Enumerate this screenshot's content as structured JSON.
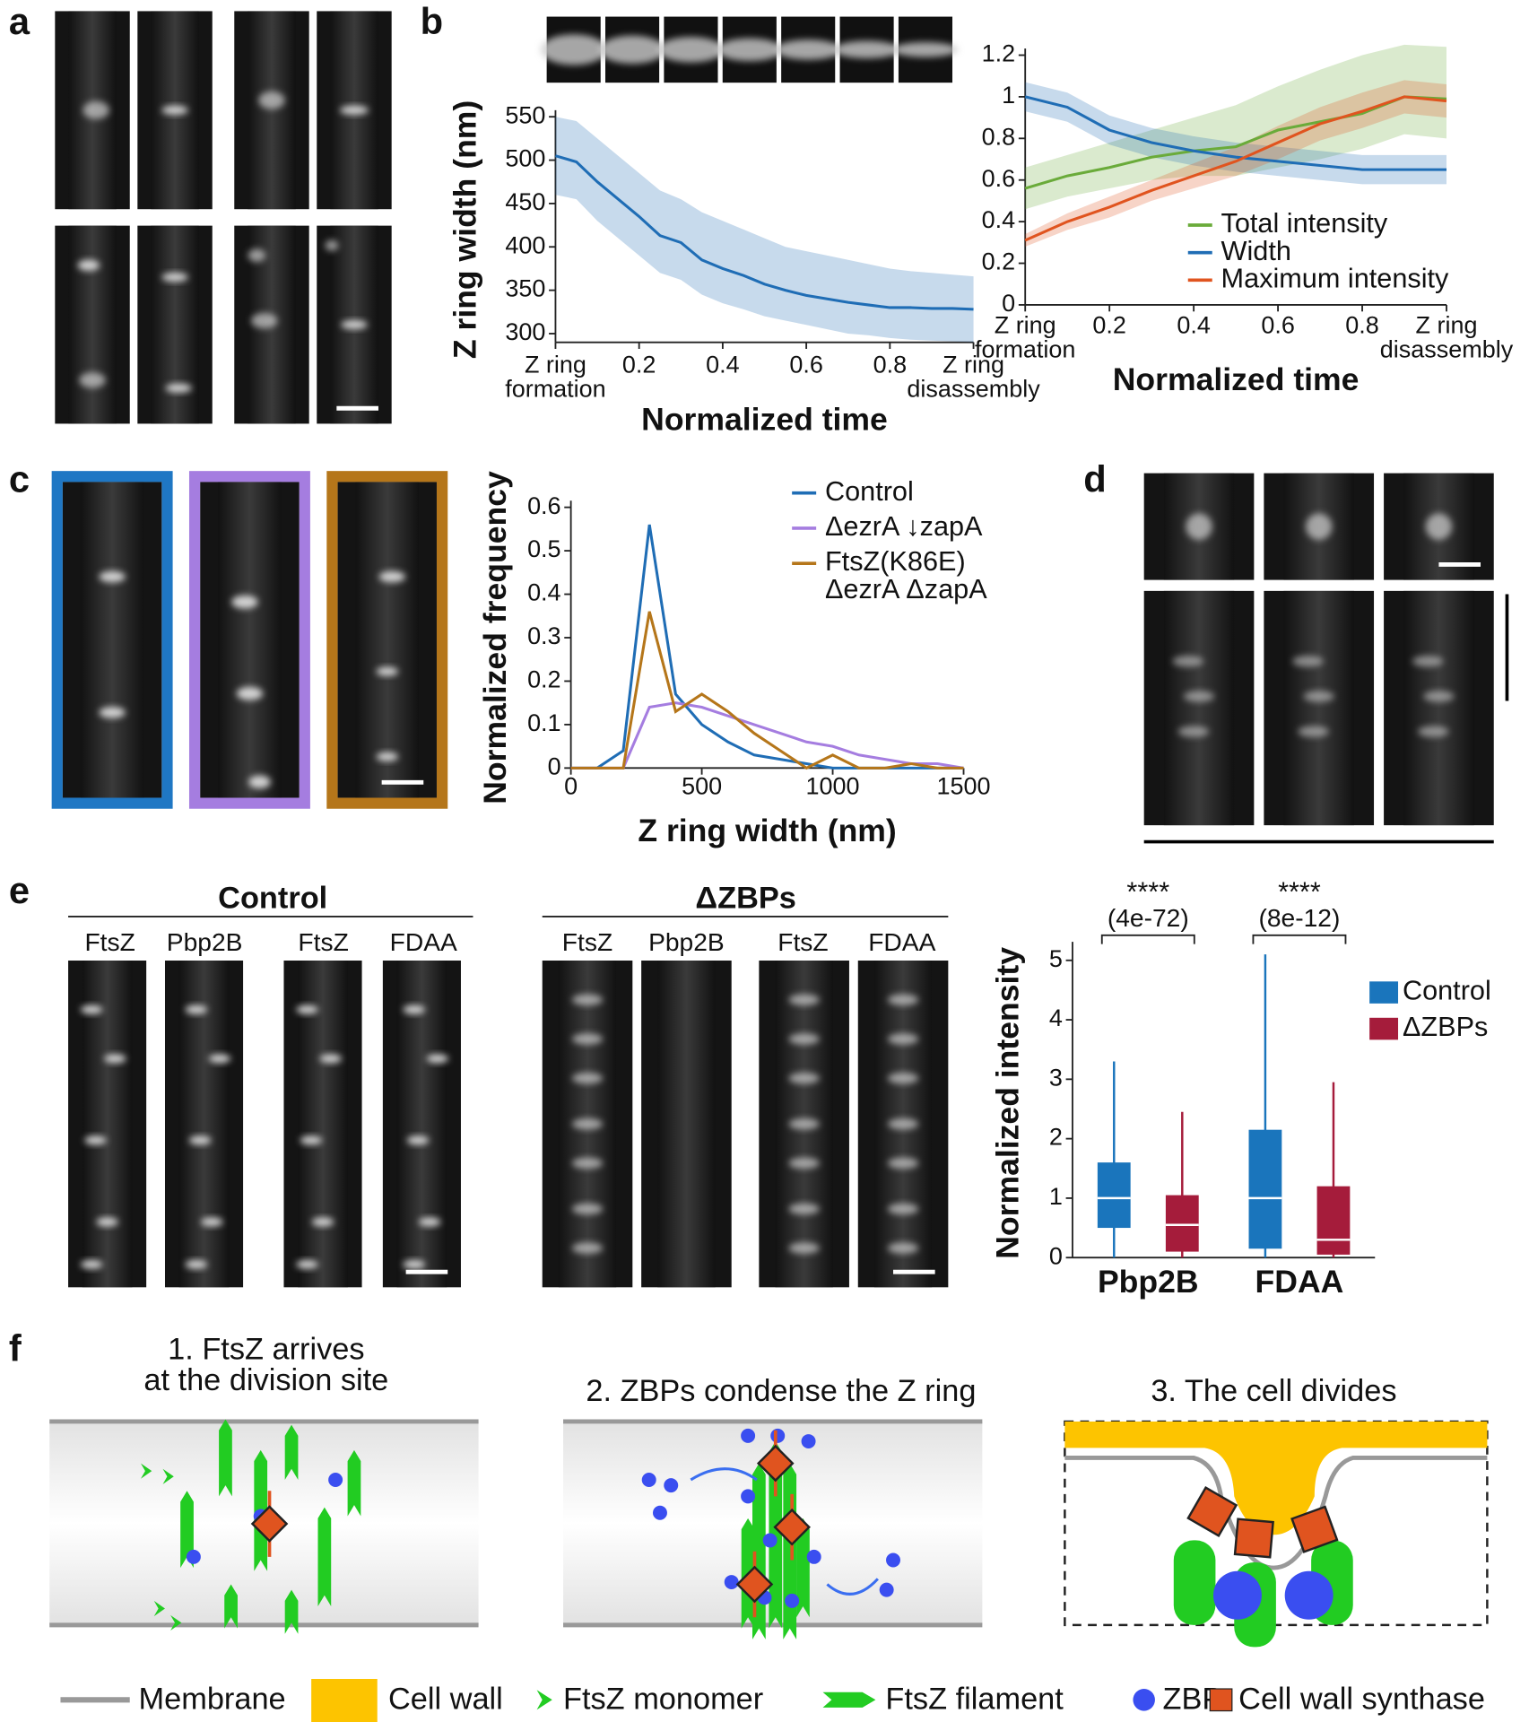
{
  "panel_labels": [
    "a",
    "b",
    "c",
    "d",
    "e",
    "f"
  ],
  "chart_data": [
    {
      "type": "line",
      "ylabel": "Z ring width (nm)",
      "xlabel": "Normalized time",
      "xlim": [
        0,
        1
      ],
      "xticks": [
        {
          "value": 0,
          "label": "Z ring\nformation"
        },
        0.2,
        0.4,
        0.6,
        0.8,
        {
          "value": 1,
          "label": "Z ring\ndisassembly"
        }
      ],
      "ylim": [
        290,
        550
      ],
      "yticks": [
        300,
        350,
        400,
        450,
        500,
        550
      ],
      "x": [
        0,
        0.05,
        0.1,
        0.15,
        0.2,
        0.25,
        0.3,
        0.35,
        0.4,
        0.45,
        0.5,
        0.55,
        0.6,
        0.65,
        0.7,
        0.75,
        0.8,
        0.85,
        0.9,
        0.95,
        1
      ],
      "series": [
        {
          "color": "#1f6db5",
          "values": [
            505,
            498,
            475,
            455,
            435,
            413,
            405,
            385,
            375,
            367,
            357,
            350,
            344,
            340,
            336,
            333,
            330,
            330,
            329,
            329,
            328
          ],
          "upper": [
            550,
            545,
            525,
            505,
            485,
            465,
            455,
            440,
            430,
            420,
            410,
            400,
            395,
            390,
            385,
            380,
            375,
            372,
            370,
            368,
            366
          ],
          "lower": [
            460,
            455,
            430,
            410,
            390,
            370,
            362,
            345,
            335,
            328,
            320,
            315,
            310,
            305,
            300,
            298,
            295,
            293,
            292,
            291,
            290
          ]
        }
      ]
    },
    {
      "type": "line",
      "xlabel": "Normalized time",
      "legend": "lower right",
      "xlim": [
        0,
        1
      ],
      "xticks": [
        {
          "value": 0,
          "label": "Z ring\nformation"
        },
        0.2,
        0.4,
        0.6,
        0.8,
        {
          "value": 1,
          "label": "Z ring\ndisassembly"
        }
      ],
      "ylim": [
        0,
        1.2
      ],
      "yticks": [
        0,
        0.2,
        0.4,
        0.6,
        0.8,
        1,
        1.2
      ],
      "x": [
        0,
        0.1,
        0.2,
        0.3,
        0.4,
        0.5,
        0.6,
        0.7,
        0.8,
        0.9,
        1
      ],
      "series": [
        {
          "name": "Total intensity",
          "color": "#6aab3a",
          "values": [
            0.56,
            0.62,
            0.66,
            0.71,
            0.74,
            0.76,
            0.84,
            0.88,
            0.92,
            1.0,
            0.99
          ],
          "upper": [
            0.66,
            0.72,
            0.78,
            0.84,
            0.9,
            0.96,
            1.05,
            1.13,
            1.2,
            1.25,
            1.24
          ],
          "lower": [
            0.46,
            0.52,
            0.56,
            0.6,
            0.62,
            0.62,
            0.66,
            0.7,
            0.75,
            0.82,
            0.8
          ]
        },
        {
          "name": "Width",
          "color": "#1f6db5",
          "values": [
            1.0,
            0.95,
            0.84,
            0.78,
            0.74,
            0.71,
            0.69,
            0.67,
            0.65,
            0.65,
            0.65
          ],
          "upper": [
            1.07,
            1.02,
            0.91,
            0.85,
            0.81,
            0.78,
            0.76,
            0.74,
            0.72,
            0.72,
            0.72
          ],
          "lower": [
            0.93,
            0.88,
            0.77,
            0.71,
            0.67,
            0.64,
            0.62,
            0.6,
            0.58,
            0.58,
            0.58
          ]
        },
        {
          "name": "Maximum intensity",
          "color": "#e0541f",
          "values": [
            0.31,
            0.4,
            0.47,
            0.55,
            0.62,
            0.69,
            0.78,
            0.87,
            0.93,
            1.0,
            0.98
          ],
          "upper": [
            0.34,
            0.44,
            0.52,
            0.6,
            0.68,
            0.76,
            0.86,
            0.95,
            1.02,
            1.08,
            1.06
          ],
          "lower": [
            0.28,
            0.36,
            0.42,
            0.5,
            0.56,
            0.62,
            0.7,
            0.79,
            0.85,
            0.92,
            0.9
          ]
        }
      ]
    },
    {
      "type": "line",
      "ylabel": "Normalized frequency",
      "xlabel": "Z ring width (nm)",
      "legend": "upper right",
      "xlim": [
        0,
        1500
      ],
      "xticks": [
        0,
        500,
        1000,
        1500
      ],
      "ylim": [
        0,
        0.6
      ],
      "yticks": [
        0,
        0.1,
        0.2,
        0.3,
        0.4,
        0.5,
        0.6
      ],
      "x": [
        0,
        100,
        200,
        300,
        400,
        500,
        600,
        700,
        800,
        900,
        1000,
        1100,
        1200,
        1300,
        1400,
        1500
      ],
      "series": [
        {
          "name": "Control",
          "color": "#1f6db5",
          "values": [
            0,
            0,
            0.04,
            0.56,
            0.17,
            0.1,
            0.06,
            0.03,
            0.02,
            0.01,
            0,
            0,
            0,
            0,
            0,
            0
          ]
        },
        {
          "name": "ΔezrA ↓zapA",
          "color": "#a57de0",
          "values": [
            0,
            0,
            0,
            0.14,
            0.15,
            0.14,
            0.12,
            0.1,
            0.08,
            0.06,
            0.05,
            0.03,
            0.02,
            0.01,
            0.01,
            0
          ]
        },
        {
          "name": "FtsZ(K86E)\nΔezrA ΔzapA",
          "color": "#b5761a",
          "values": [
            0,
            0,
            0,
            0.36,
            0.13,
            0.17,
            0.13,
            0.08,
            0.04,
            0,
            0.03,
            0,
            0,
            0.01,
            0,
            0
          ]
        }
      ]
    },
    {
      "type": "box",
      "ylabel": "Normalized intensity",
      "legend": "upper right",
      "ylim": [
        0,
        5.2
      ],
      "yticks": [
        0,
        1,
        2,
        3,
        4,
        5
      ],
      "categories": [
        "Pbp2B",
        "FDAA"
      ],
      "annotations": [
        "****",
        "(4e-72)",
        "****",
        "(8e-12)"
      ],
      "series": [
        {
          "name": "Control",
          "color": "#1a75bc",
          "min": [
            0,
            0
          ],
          "q1": [
            0.5,
            0.15
          ],
          "median": [
            1.0,
            1.0
          ],
          "q3": [
            1.6,
            2.15
          ],
          "max": [
            3.3,
            5.1
          ]
        },
        {
          "name": "ΔZBPs",
          "color": "#a51c3b",
          "min": [
            0,
            0
          ],
          "q1": [
            0.1,
            0.05
          ],
          "median": [
            0.55,
            0.3
          ],
          "q3": [
            1.05,
            1.2
          ],
          "max": [
            2.45,
            2.95
          ]
        }
      ]
    }
  ],
  "panel_e": {
    "groups": [
      "Control",
      "ΔZBPs"
    ],
    "columns": [
      [
        "FtsZ",
        "Pbp2B",
        "FtsZ",
        "FDAA"
      ],
      [
        "FtsZ",
        "Pbp2B",
        "FtsZ",
        "FDAA"
      ]
    ]
  },
  "panel_f": {
    "steps": [
      "1. FtsZ arrives\nat the division site",
      "2. ZBPs condense the Z ring",
      "3. The cell divides"
    ],
    "legend": [
      "Membrane",
      "Cell wall",
      "FtsZ monomer",
      "FtsZ filament",
      "ZBP",
      "Cell wall synthase"
    ]
  }
}
